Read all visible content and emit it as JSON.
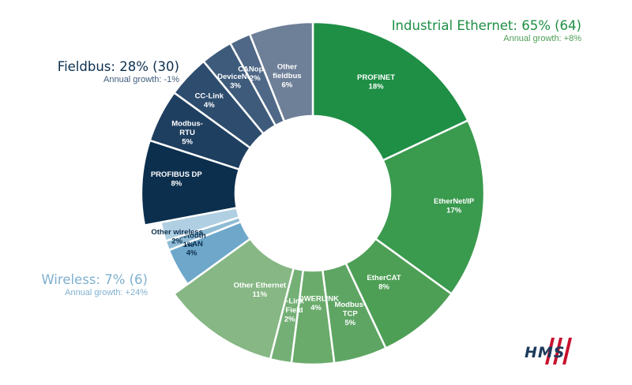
{
  "groups": {
    "industrial": {
      "title": "Industrial Ethernet: 65% (64)",
      "growth": "Annual growth: +8%",
      "color": "#1e8f45"
    },
    "fieldbus": {
      "title": "Fieldbus: 28% (30)",
      "growth": "Annual growth: -1%",
      "color": "#0c2f4e"
    },
    "wireless": {
      "title": "Wireless: 7% (6)",
      "growth": "Annual growth: +24%",
      "color": "#7fb0cf"
    }
  },
  "logo": {
    "text": "HMS"
  },
  "chart_data": {
    "type": "pie",
    "style": "donut",
    "slices": [
      {
        "name": "PROFINET",
        "label": "18%",
        "value": 18,
        "group": "Industrial Ethernet",
        "color": "#1e8f45",
        "text_color": "#ffffff"
      },
      {
        "name": "EtherNet/IP",
        "label": "17%",
        "value": 17,
        "group": "Industrial Ethernet",
        "color": "#3a9a4e",
        "text_color": "#ffffff"
      },
      {
        "name": "EtherCAT",
        "label": "8%",
        "value": 8,
        "group": "Industrial Ethernet",
        "color": "#4e9f56",
        "text_color": "#ffffff"
      },
      {
        "name": "Modbus-TCP",
        "label": "5%",
        "value": 5,
        "group": "Industrial Ethernet",
        "color": "#5ea564",
        "text_color": "#ffffff"
      },
      {
        "name": "POWERLINK",
        "label": "4%",
        "value": 4,
        "group": "Industrial Ethernet",
        "color": "#6aab6b",
        "text_color": "#ffffff"
      },
      {
        "name": "CC-Link IE Field",
        "label": "2%",
        "value": 2,
        "group": "Industrial Ethernet",
        "color": "#74b076",
        "text_color": "#ffffff"
      },
      {
        "name": "Other Ethernet",
        "label": "11%",
        "value": 11,
        "group": "Industrial Ethernet",
        "color": "#86b784",
        "text_color": "#ffffff"
      },
      {
        "name": "WLAN",
        "label": "4%",
        "value": 4,
        "group": "Wireless",
        "color": "#6ea7ca",
        "text_color": "#0c2f4e"
      },
      {
        "name": "Bluetooth",
        "label": "1%",
        "value": 1,
        "group": "Wireless",
        "color": "#90bcd6",
        "text_color": "#0c2f4e"
      },
      {
        "name": "Other wireless",
        "label": "2%",
        "value": 2,
        "group": "Wireless",
        "color": "#b0cfe2",
        "text_color": "#0c2f4e"
      },
      {
        "name": "PROFIBUS DP",
        "label": "8%",
        "value": 8,
        "group": "Fieldbus",
        "color": "#0c2f4e",
        "text_color": "#ffffff"
      },
      {
        "name": "Modbus-RTU",
        "label": "5%",
        "value": 5,
        "group": "Fieldbus",
        "color": "#1f3f60",
        "text_color": "#ffffff"
      },
      {
        "name": "CC-Link",
        "label": "4%",
        "value": 4,
        "group": "Fieldbus",
        "color": "#2e4d6e",
        "text_color": "#ffffff"
      },
      {
        "name": "DeviceNet",
        "label": "3%",
        "value": 3,
        "group": "Fieldbus",
        "color": "#3e5b7b",
        "text_color": "#ffffff"
      },
      {
        "name": "CANopen",
        "label": "2%",
        "value": 2,
        "group": "Fieldbus",
        "color": "#4f6887",
        "text_color": "#ffffff"
      },
      {
        "name": "Other fieldbus",
        "label": "6%",
        "value": 6,
        "group": "Fieldbus",
        "color": "#6e7f98",
        "text_color": "#ffffff"
      }
    ]
  }
}
